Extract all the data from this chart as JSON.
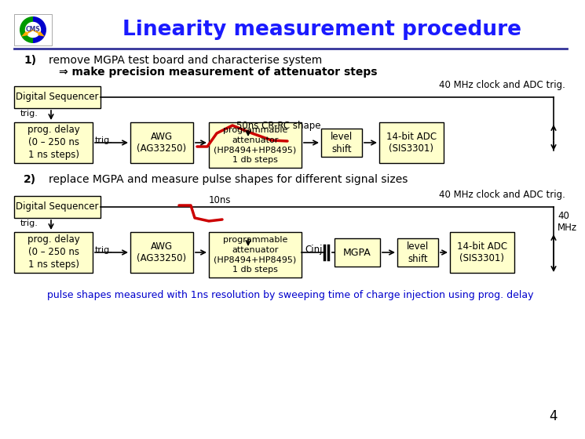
{
  "title": "Linearity measurement procedure",
  "title_color": "#1a1aff",
  "bg_color": "#ffffff",
  "step1_label": "1)",
  "step1_text": "remove MGPA test board and characterise system",
  "step1_subtext": "⇒ make precision measurement of attenuator steps",
  "step2_label": "2)",
  "step2_text": "replace MGPA and measure pulse shapes for different signal sizes",
  "footer_text": "pulse shapes measured with 1ns resolution by sweeping time of charge injection using prog. delay",
  "footer_color": "#0000cc",
  "page_num": "4",
  "box_fill": "#ffffcc",
  "box_edge": "#000000",
  "signal_color": "#cc0000",
  "title_sep_color": "#333399",
  "clock_label1": "40 MHz clock and ADC trig.",
  "clock_label2": "40 MHz clock and ADC trig.",
  "mhz40_label": "40\nMHz"
}
